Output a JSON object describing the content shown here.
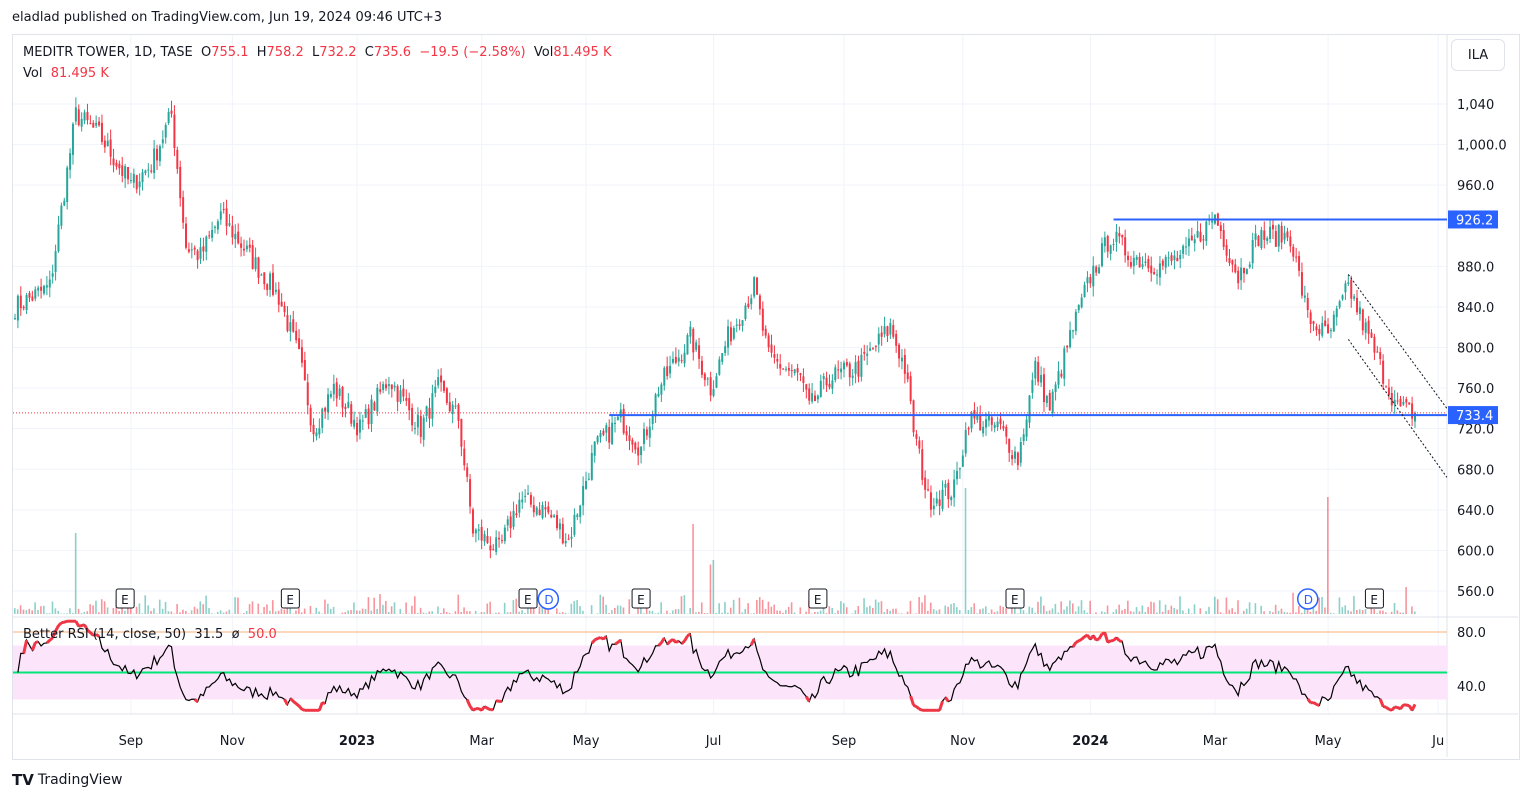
{
  "publish_line": "eladlad published on TradingView.com, Jun 19, 2024 09:46 UTC+3",
  "legend": {
    "symbol": "MEDITR TOWER, 1D, TASE",
    "o_label": "O",
    "o": "755.1",
    "h_label": "H",
    "h": "758.2",
    "l_label": "L",
    "l": "732.2",
    "c_label": "C",
    "c": "735.6",
    "change": "−19.5 (−2.58%)",
    "vol_label": "Vol",
    "vol": "81.495 K"
  },
  "volume_legend": {
    "label": "Vol",
    "value": "81.495 K"
  },
  "rsi_legend": {
    "label": "Better RSI (14, close, 50)",
    "value": "31.5",
    "sep": "ø",
    "ma": "50.0"
  },
  "currency": "ILA",
  "brand": "TradingView",
  "colors": {
    "up": "#26a69a",
    "down": "#f23645",
    "line": "#2962ff",
    "rsi_band": "#fce4fb"
  },
  "chart_data": {
    "type": "candlestick",
    "title": "MEDITR TOWER, 1D, TASE",
    "ylim": [
      540,
      1060
    ],
    "y_ticks": [
      "1,040",
      "1,000.0",
      "960.0",
      "880.0",
      "840.0",
      "800.0",
      "760.0",
      "720.0",
      "680.0",
      "640.0",
      "600.0",
      "560.0"
    ],
    "y_tick_values": [
      1040,
      1000,
      960,
      880,
      840,
      800,
      760,
      720,
      680,
      640,
      600,
      560
    ],
    "x_ticks": [
      "Sep",
      "Nov",
      "2023",
      "Mar",
      "May",
      "Jul",
      "Sep",
      "Nov",
      "2024",
      "Mar",
      "May",
      "Ju"
    ],
    "x_tick_bars": [
      40,
      75,
      118,
      161,
      197,
      241,
      286,
      327,
      371,
      414,
      453,
      491
    ],
    "bar_count": 484,
    "close_path": [
      [
        0,
        840
      ],
      [
        12,
        860
      ],
      [
        21,
        1030
      ],
      [
        29,
        1010
      ],
      [
        40,
        960
      ],
      [
        47,
        980
      ],
      [
        54,
        1030
      ],
      [
        59,
        900
      ],
      [
        64,
        890
      ],
      [
        71,
        930
      ],
      [
        81,
        890
      ],
      [
        91,
        850
      ],
      [
        98,
        790
      ],
      [
        103,
        720
      ],
      [
        110,
        760
      ],
      [
        119,
        720
      ],
      [
        129,
        770
      ],
      [
        140,
        720
      ],
      [
        146,
        760
      ],
      [
        153,
        730
      ],
      [
        158,
        620
      ],
      [
        167,
        600
      ],
      [
        174,
        650
      ],
      [
        183,
        640
      ],
      [
        191,
        610
      ],
      [
        200,
        700
      ],
      [
        209,
        730
      ],
      [
        216,
        700
      ],
      [
        222,
        760
      ],
      [
        233,
        810
      ],
      [
        240,
        760
      ],
      [
        246,
        810
      ],
      [
        255,
        860
      ],
      [
        260,
        790
      ],
      [
        271,
        770
      ],
      [
        274,
        740
      ],
      [
        281,
        770
      ],
      [
        291,
        780
      ],
      [
        302,
        820
      ],
      [
        307,
        780
      ],
      [
        310,
        720
      ],
      [
        315,
        650
      ],
      [
        324,
        660
      ],
      [
        329,
        730
      ],
      [
        340,
        720
      ],
      [
        346,
        690
      ],
      [
        352,
        780
      ],
      [
        357,
        740
      ],
      [
        364,
        810
      ],
      [
        371,
        870
      ],
      [
        378,
        910
      ],
      [
        385,
        890
      ],
      [
        395,
        880
      ],
      [
        403,
        890
      ],
      [
        414,
        930
      ],
      [
        422,
        870
      ],
      [
        429,
        910
      ],
      [
        440,
        910
      ],
      [
        446,
        830
      ],
      [
        453,
        810
      ],
      [
        460,
        860
      ],
      [
        467,
        810
      ],
      [
        474,
        760
      ],
      [
        477,
        740
      ],
      [
        483,
        735.6
      ]
    ],
    "last_close": 735.6,
    "hlines": [
      {
        "label": "926.2",
        "value": 926.2,
        "from_bar": 379
      },
      {
        "label": "733.4",
        "value": 733.4,
        "from_bar": 205
      }
    ],
    "trendlines": [
      [
        [
          460,
          872
        ],
        [
          494,
          740
        ]
      ],
      [
        [
          460,
          808
        ],
        [
          494,
          672
        ]
      ]
    ],
    "events": {
      "earnings_label": "E",
      "dividend_label": "D",
      "earnings_bars": [
        38,
        95,
        177,
        216,
        277,
        345,
        469
      ],
      "dividend_bars": [
        184,
        446
      ]
    },
    "volume_spikes": [
      [
        21,
        0.9
      ],
      [
        234,
        1
      ],
      [
        240,
        0.55
      ],
      [
        241,
        0.6
      ],
      [
        328,
        1.4
      ],
      [
        453,
        1.3
      ],
      [
        480,
        0.3
      ]
    ],
    "rsi": {
      "period": 14,
      "ylim": [
        20,
        90
      ],
      "ticks": [
        "80.0",
        "40.0"
      ],
      "tick_values": [
        80,
        40
      ],
      "band": [
        30,
        70
      ],
      "mid": 50
    }
  }
}
